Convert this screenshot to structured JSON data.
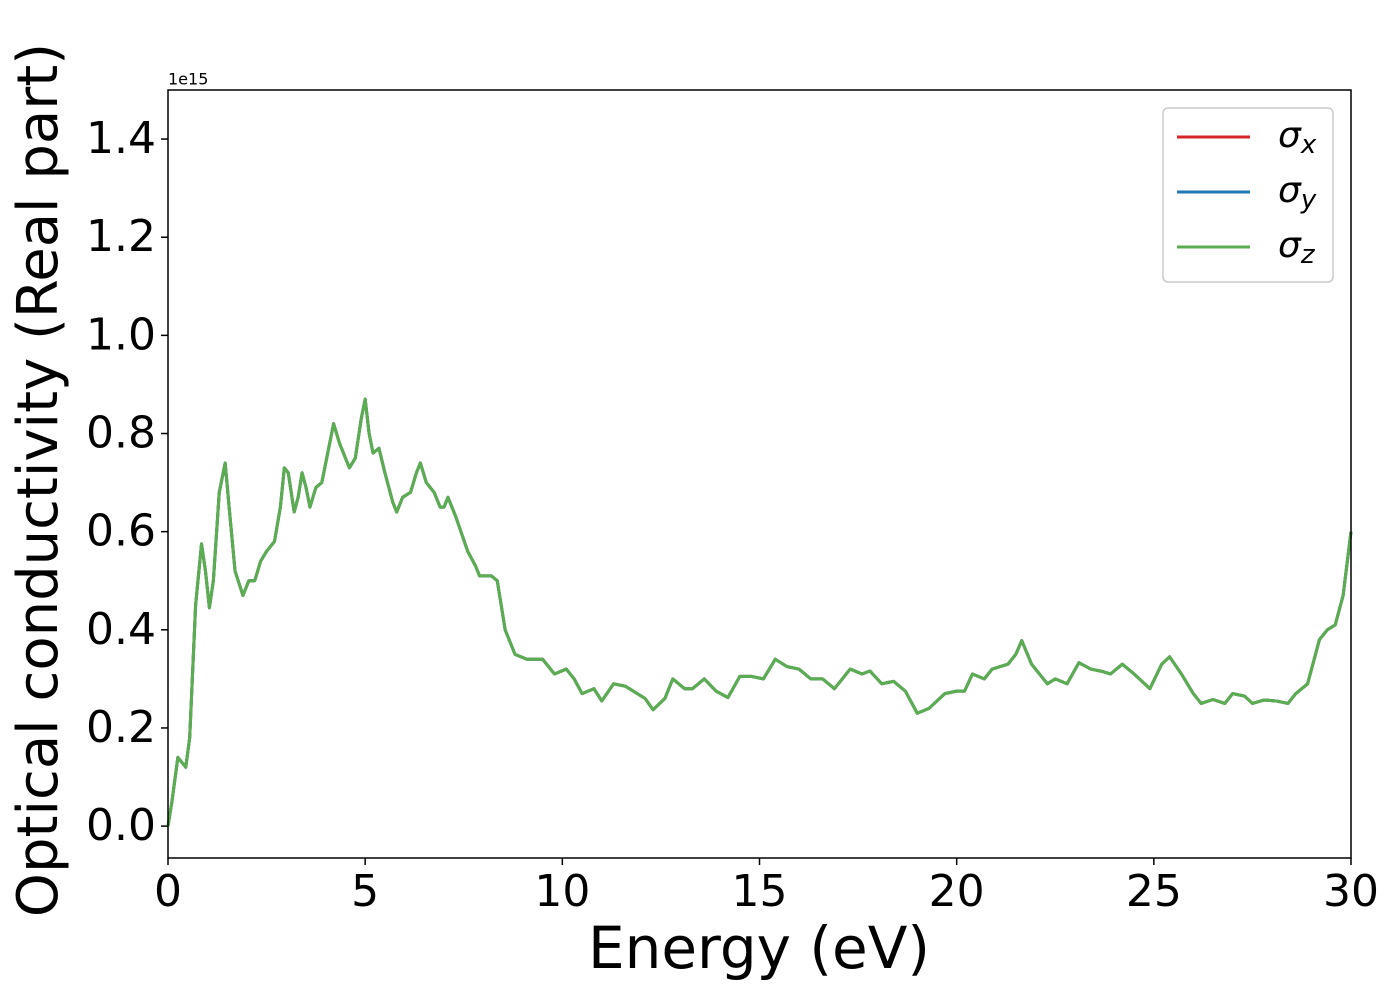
{
  "chart_data": {
    "type": "line",
    "xlabel": "Energy (eV)",
    "ylabel": "Optical conductivity (Real part)",
    "y_offset_label": "1e15",
    "x": [
      0,
      0.1,
      0.25,
      0.35,
      0.45,
      0.55,
      0.7,
      0.85,
      0.95,
      1.05,
      1.15,
      1.3,
      1.45,
      1.55,
      1.7,
      1.9,
      2.05,
      2.2,
      2.35,
      2.5,
      2.7,
      2.85,
      2.95,
      3.05,
      3.2,
      3.3,
      3.4,
      3.5,
      3.6,
      3.75,
      3.9,
      4.05,
      4.2,
      4.35,
      4.5,
      4.6,
      4.75,
      4.9,
      5.0,
      5.1,
      5.2,
      5.35,
      5.5,
      5.7,
      5.8,
      5.95,
      6.15,
      6.3,
      6.4,
      6.55,
      6.75,
      6.9,
      7.0,
      7.1,
      7.3,
      7.6,
      7.8,
      7.9,
      8.2,
      8.35,
      8.55,
      8.8,
      9.1,
      9.5,
      9.8,
      10.1,
      10.3,
      10.5,
      10.8,
      11.0,
      11.3,
      11.6,
      11.9,
      12.1,
      12.3,
      12.6,
      12.8,
      13.1,
      13.3,
      13.6,
      13.9,
      14.2,
      14.5,
      14.8,
      15.1,
      15.4,
      15.7,
      16.0,
      16.3,
      16.6,
      16.9,
      17.3,
      17.6,
      17.8,
      18.1,
      18.4,
      18.7,
      19.0,
      19.3,
      19.7,
      20.0,
      20.2,
      20.4,
      20.7,
      20.9,
      21.3,
      21.5,
      21.65,
      21.9,
      22.3,
      22.5,
      22.8,
      23.1,
      23.4,
      23.7,
      23.9,
      24.2,
      24.5,
      24.9,
      25.2,
      25.4,
      25.7,
      26.0,
      26.2,
      26.5,
      26.8,
      27.0,
      27.3,
      27.5,
      27.8,
      28.1,
      28.4,
      28.6,
      28.9,
      29.2,
      29.4,
      29.6,
      29.8,
      30.0
    ],
    "series": [
      {
        "name": "σx",
        "color": "#d62728",
        "values": [
          0,
          0.05,
          0.14,
          0.13,
          0.12,
          0.18,
          0.45,
          0.575,
          0.52,
          0.445,
          0.5,
          0.68,
          0.74,
          0.65,
          0.52,
          0.47,
          0.5,
          0.5,
          0.54,
          0.56,
          0.58,
          0.65,
          0.73,
          0.72,
          0.64,
          0.67,
          0.72,
          0.69,
          0.65,
          0.69,
          0.7,
          0.76,
          0.82,
          0.78,
          0.75,
          0.73,
          0.75,
          0.83,
          0.87,
          0.8,
          0.76,
          0.77,
          0.72,
          0.66,
          0.64,
          0.67,
          0.68,
          0.72,
          0.74,
          0.7,
          0.68,
          0.65,
          0.65,
          0.67,
          0.63,
          0.56,
          0.53,
          0.51,
          0.51,
          0.5,
          0.4,
          0.35,
          0.34,
          0.34,
          0.31,
          0.32,
          0.3,
          0.27,
          0.28,
          0.255,
          0.29,
          0.285,
          0.27,
          0.26,
          0.237,
          0.26,
          0.3,
          0.28,
          0.28,
          0.3,
          0.275,
          0.262,
          0.305,
          0.305,
          0.3,
          0.34,
          0.325,
          0.32,
          0.3,
          0.3,
          0.28,
          0.32,
          0.31,
          0.316,
          0.29,
          0.295,
          0.275,
          0.23,
          0.24,
          0.27,
          0.275,
          0.275,
          0.31,
          0.3,
          0.32,
          0.33,
          0.35,
          0.378,
          0.33,
          0.29,
          0.3,
          0.29,
          0.333,
          0.32,
          0.315,
          0.31,
          0.33,
          0.31,
          0.28,
          0.33,
          0.345,
          0.31,
          0.27,
          0.25,
          0.258,
          0.25,
          0.27,
          0.265,
          0.25,
          0.257,
          0.255,
          0.25,
          0.27,
          0.29,
          0.38,
          0.4,
          0.41,
          0.47,
          0.6
        ]
      },
      {
        "name": "σy",
        "color": "#1f77b4",
        "values": [
          0,
          0.05,
          0.14,
          0.13,
          0.12,
          0.18,
          0.45,
          0.575,
          0.52,
          0.445,
          0.5,
          0.68,
          0.74,
          0.65,
          0.52,
          0.47,
          0.5,
          0.5,
          0.54,
          0.56,
          0.58,
          0.65,
          0.73,
          0.72,
          0.64,
          0.67,
          0.72,
          0.69,
          0.65,
          0.69,
          0.7,
          0.76,
          0.82,
          0.78,
          0.75,
          0.73,
          0.75,
          0.83,
          0.87,
          0.8,
          0.76,
          0.77,
          0.72,
          0.66,
          0.64,
          0.67,
          0.68,
          0.72,
          0.74,
          0.7,
          0.68,
          0.65,
          0.65,
          0.67,
          0.63,
          0.56,
          0.53,
          0.51,
          0.51,
          0.5,
          0.4,
          0.35,
          0.34,
          0.34,
          0.31,
          0.32,
          0.3,
          0.27,
          0.28,
          0.255,
          0.29,
          0.285,
          0.27,
          0.26,
          0.237,
          0.26,
          0.3,
          0.28,
          0.28,
          0.3,
          0.275,
          0.262,
          0.305,
          0.305,
          0.3,
          0.34,
          0.325,
          0.32,
          0.3,
          0.3,
          0.28,
          0.32,
          0.31,
          0.316,
          0.29,
          0.295,
          0.275,
          0.23,
          0.24,
          0.27,
          0.275,
          0.275,
          0.31,
          0.3,
          0.32,
          0.33,
          0.35,
          0.378,
          0.33,
          0.29,
          0.3,
          0.29,
          0.333,
          0.32,
          0.315,
          0.31,
          0.33,
          0.31,
          0.28,
          0.33,
          0.345,
          0.31,
          0.27,
          0.25,
          0.258,
          0.25,
          0.27,
          0.265,
          0.25,
          0.257,
          0.255,
          0.25,
          0.27,
          0.29,
          0.38,
          0.4,
          0.41,
          0.47,
          0.6
        ]
      },
      {
        "name": "σz",
        "color": "#5aae50",
        "values": [
          0,
          0.05,
          0.14,
          0.13,
          0.12,
          0.18,
          0.45,
          0.575,
          0.52,
          0.445,
          0.5,
          0.68,
          0.74,
          0.65,
          0.52,
          0.47,
          0.5,
          0.5,
          0.54,
          0.56,
          0.58,
          0.65,
          0.73,
          0.72,
          0.64,
          0.67,
          0.72,
          0.69,
          0.65,
          0.69,
          0.7,
          0.76,
          0.82,
          0.78,
          0.75,
          0.73,
          0.75,
          0.83,
          0.87,
          0.8,
          0.76,
          0.77,
          0.72,
          0.66,
          0.64,
          0.67,
          0.68,
          0.72,
          0.74,
          0.7,
          0.68,
          0.65,
          0.65,
          0.67,
          0.63,
          0.56,
          0.53,
          0.51,
          0.51,
          0.5,
          0.4,
          0.35,
          0.34,
          0.34,
          0.31,
          0.32,
          0.3,
          0.27,
          0.28,
          0.255,
          0.29,
          0.285,
          0.27,
          0.26,
          0.237,
          0.26,
          0.3,
          0.28,
          0.28,
          0.3,
          0.275,
          0.262,
          0.305,
          0.305,
          0.3,
          0.34,
          0.325,
          0.32,
          0.3,
          0.3,
          0.28,
          0.32,
          0.31,
          0.316,
          0.29,
          0.295,
          0.275,
          0.23,
          0.24,
          0.27,
          0.275,
          0.275,
          0.31,
          0.3,
          0.32,
          0.33,
          0.35,
          0.378,
          0.33,
          0.29,
          0.3,
          0.29,
          0.333,
          0.32,
          0.315,
          0.31,
          0.33,
          0.31,
          0.28,
          0.33,
          0.345,
          0.31,
          0.27,
          0.25,
          0.258,
          0.25,
          0.27,
          0.265,
          0.25,
          0.257,
          0.255,
          0.25,
          0.27,
          0.29,
          0.38,
          0.4,
          0.41,
          0.47,
          0.6
        ]
      }
    ],
    "xlim": [
      0,
      30
    ],
    "xticks": [
      0,
      5,
      10,
      15,
      20,
      25,
      30
    ],
    "ylim": [
      -0.065,
      1.5
    ],
    "yticks": [
      {
        "value": 0,
        "label": "0.0"
      },
      0.2,
      0.4,
      0.6,
      0.8,
      {
        "value": 1,
        "label": "1.0"
      },
      1.2,
      1.4
    ],
    "grid": false,
    "legend": "upper right"
  }
}
